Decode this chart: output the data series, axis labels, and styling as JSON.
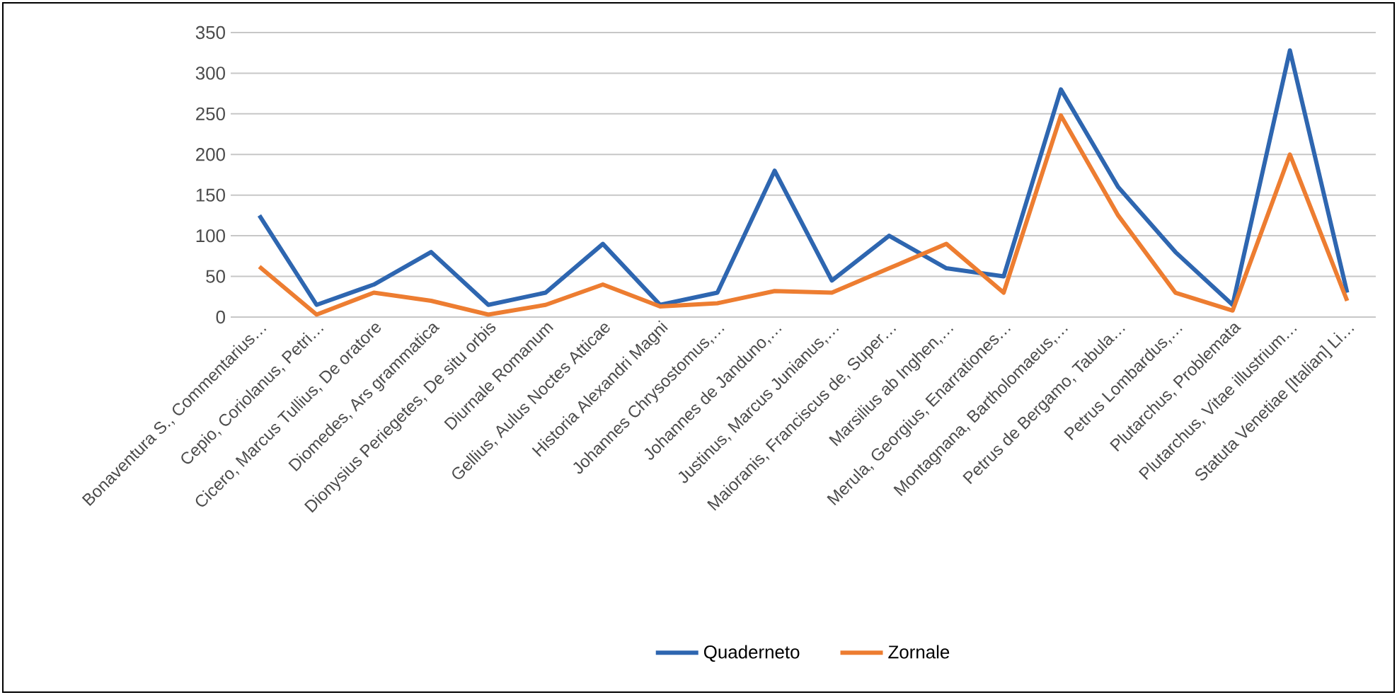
{
  "chart_data": {
    "type": "line",
    "categories": [
      "Bonaventura S., Commentarius…",
      "Cepio, Coriolanus, Petri…",
      "Cicero, Marcus Tullius, De oratore",
      "Diomedes, Ars grammatica",
      "Dionysius Periegetes, De situ orbis",
      "Diurnale Romanum",
      "Gellius, Aulus Noctes Atticae",
      "Historia Alexandri Magni",
      "Johannes Chrysostomus,…",
      "Johannes de Janduno,…",
      "Justinus, Marcus Junianus,…",
      "Maioranis, Franciscus de, Super…",
      "Marsilius ab Inghen,…",
      "Merula, Georgius, Enarrationes…",
      "Montagnana, Bartholomaeus,…",
      "Petrus de Bergamo, Tabula…",
      "Petrus Lombardus,…",
      "Plutarchus, Problemata",
      "Plutarchus, Vitae illustrium…",
      "Statuta Venetiae [Italian] Li…"
    ],
    "series": [
      {
        "name": "Quaderneto",
        "color": "#2e66b0",
        "values": [
          125,
          15,
          40,
          80,
          15,
          30,
          90,
          15,
          30,
          180,
          45,
          100,
          60,
          50,
          280,
          160,
          80,
          15,
          328,
          30
        ]
      },
      {
        "name": "Zornale",
        "color": "#ed7d31",
        "values": [
          62,
          3,
          30,
          20,
          3,
          15,
          40,
          13,
          17,
          32,
          30,
          60,
          90,
          30,
          248,
          125,
          30,
          8,
          200,
          20
        ]
      }
    ],
    "ylim": [
      0,
      350
    ],
    "yticks": [
      0,
      50,
      100,
      150,
      200,
      250,
      300,
      350
    ],
    "grid": "y",
    "legend": "bottom",
    "marker": "none",
    "line_style": "solid"
  }
}
